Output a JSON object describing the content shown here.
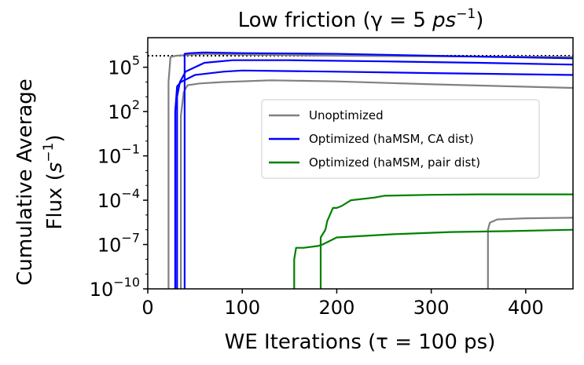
{
  "chart_data": {
    "type": "line",
    "title": "Low friction (γ = 5 ps⁻¹)",
    "title_parts": {
      "main": "Low friction (γ = 5 ",
      "italic": "ps",
      "sup": "−1",
      "close": ")"
    },
    "xlabel": "WE Iterations (τ = 100 ps)",
    "ylabel_line1": "Cumulative Average",
    "ylabel_line2": {
      "main": "Flux (",
      "italic": "s",
      "sup": "−1",
      "close": ")"
    },
    "xlim": [
      0,
      450
    ],
    "ylim": [
      1e-10,
      10000000.0
    ],
    "yscale": "log",
    "x_ticks": [
      {
        "value": 0,
        "label": "0"
      },
      {
        "value": 100,
        "label": "100"
      },
      {
        "value": 200,
        "label": "200"
      },
      {
        "value": 300,
        "label": "300"
      },
      {
        "value": 400,
        "label": "400"
      }
    ],
    "y_ticks": [
      {
        "exp": -10,
        "base": "10",
        "sup": "−10"
      },
      {
        "exp": -7,
        "base": "10",
        "sup": "−7"
      },
      {
        "exp": -4,
        "base": "10",
        "sup": "−4"
      },
      {
        "exp": -1,
        "base": "10",
        "sup": "−1"
      },
      {
        "exp": 2,
        "base": "10",
        "sup": "2"
      },
      {
        "exp": 5,
        "base": "10",
        "sup": "5"
      }
    ],
    "reference_line": {
      "y": 600000,
      "style": "dotted",
      "color": "#000000"
    },
    "legend": {
      "placement": "center-right",
      "entries": [
        {
          "label": "Unoptimized",
          "color": "#808080"
        },
        {
          "label": "Optimized (haMSM, CA dist)",
          "color": "#0000ff"
        },
        {
          "label": "Optimized (haMSM, pair dist)",
          "color": "#008000"
        }
      ]
    },
    "series": [
      {
        "group": "Unoptimized",
        "color": "#808080",
        "points": [
          [
            22,
            1e-10
          ],
          [
            22,
            10000.0
          ],
          [
            24,
            500000.0
          ],
          [
            30,
            600000.0
          ],
          [
            60,
            800000.0
          ],
          [
            100,
            700000.0
          ],
          [
            200,
            600000.0
          ],
          [
            300,
            550000.0
          ],
          [
            450,
            500000.0
          ]
        ]
      },
      {
        "group": "Unoptimized",
        "color": "#808080",
        "points": [
          [
            35,
            1e-10
          ],
          [
            35,
            50.0
          ],
          [
            38,
            2000.0
          ],
          [
            42,
            6000.0
          ],
          [
            55,
            8000.0
          ],
          [
            80,
            10000.0
          ],
          [
            130,
            13000.0
          ],
          [
            200,
            11000.0
          ],
          [
            300,
            7000.0
          ],
          [
            450,
            4000.0
          ]
        ]
      },
      {
        "group": "Unoptimized",
        "color": "#808080",
        "points": [
          [
            360,
            1e-10
          ],
          [
            360,
            1e-06
          ],
          [
            362,
            3e-06
          ],
          [
            370,
            5e-06
          ],
          [
            400,
            6e-06
          ],
          [
            450,
            6.5e-06
          ]
        ]
      },
      {
        "group": "Optimized (haMSM, CA dist)",
        "color": "#0000ff",
        "points": [
          [
            29,
            1e-10
          ],
          [
            29,
            100.0
          ],
          [
            31,
            5000.0
          ],
          [
            35,
            10000.0
          ],
          [
            50,
            30000.0
          ],
          [
            80,
            50000.0
          ],
          [
            100,
            60000.0
          ],
          [
            200,
            50000.0
          ],
          [
            300,
            40000.0
          ],
          [
            450,
            30000.0
          ]
        ]
      },
      {
        "group": "Optimized (haMSM, CA dist)",
        "color": "#0000ff",
        "points": [
          [
            31,
            1e-10
          ],
          [
            31,
            1000.0
          ],
          [
            34,
            10000.0
          ],
          [
            40,
            50000.0
          ],
          [
            60,
            200000.0
          ],
          [
            90,
            300000.0
          ],
          [
            150,
            300000.0
          ],
          [
            250,
            250000.0
          ],
          [
            350,
            200000.0
          ],
          [
            450,
            150000.0
          ]
        ]
      },
      {
        "group": "Optimized (haMSM, CA dist)",
        "color": "#0000ff",
        "points": [
          [
            39,
            1e-10
          ],
          [
            39,
            800000.0
          ],
          [
            45,
            900000.0
          ],
          [
            60,
            1000000.0
          ],
          [
            100,
            900000.0
          ],
          [
            200,
            800000.0
          ],
          [
            300,
            600000.0
          ],
          [
            450,
            400000.0
          ]
        ]
      },
      {
        "group": "Optimized (haMSM, pair dist)",
        "color": "#008000",
        "points": [
          [
            155,
            1e-10
          ],
          [
            155,
            1e-08
          ],
          [
            157,
            6e-08
          ],
          [
            165,
            6e-08
          ],
          [
            180,
            8e-08
          ],
          [
            185,
            1e-07
          ],
          [
            200,
            3e-07
          ],
          [
            260,
            5e-07
          ],
          [
            320,
            7e-07
          ],
          [
            380,
            8e-07
          ],
          [
            450,
            1e-06
          ]
        ]
      },
      {
        "group": "Optimized (haMSM, pair dist)",
        "color": "#008000",
        "points": [
          [
            183,
            1e-10
          ],
          [
            183,
            3e-07
          ],
          [
            188,
            1e-06
          ],
          [
            190,
            4e-06
          ],
          [
            196,
            3e-05
          ],
          [
            200,
            3e-05
          ],
          [
            205,
            4e-05
          ],
          [
            215,
            0.0001
          ],
          [
            240,
            0.00015
          ],
          [
            250,
            0.0002
          ],
          [
            300,
            0.00023
          ],
          [
            350,
            0.00025
          ],
          [
            450,
            0.00025
          ]
        ]
      }
    ]
  }
}
